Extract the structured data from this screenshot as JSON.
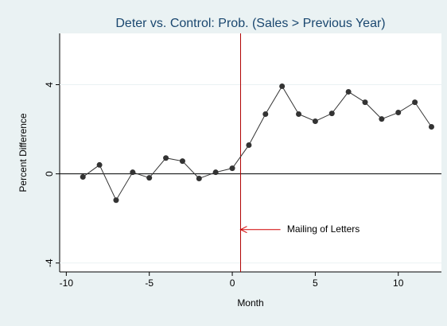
{
  "chart_data": {
    "type": "line",
    "title": "Deter vs. Control: Prob. (Sales > Previous Year)",
    "xlabel": "Month",
    "ylabel": "Percent Difference",
    "x": [
      -9,
      -8,
      -7,
      -6,
      -5,
      -4,
      -3,
      -2,
      -1,
      0,
      1,
      2,
      3,
      4,
      5,
      6,
      7,
      8,
      9,
      10,
      11,
      12
    ],
    "series": [
      {
        "color": "#333333",
        "values": [
          -0.14,
          0.4,
          -1.18,
          0.07,
          -0.18,
          0.71,
          0.57,
          -0.21,
          0.07,
          0.25,
          1.29,
          2.68,
          3.93,
          2.68,
          2.36,
          2.71,
          3.68,
          3.21,
          2.46,
          2.75,
          3.21,
          2.11
        ]
      }
    ],
    "xlim": [
      -10.4,
      12.6
    ],
    "xticks": [
      -10,
      -5,
      0,
      5,
      10
    ],
    "ylim": [
      -4.4,
      6.3
    ],
    "yticks": [
      -4,
      0,
      4
    ],
    "grid": true,
    "zero_line": true,
    "vline": {
      "x": 0.5,
      "color": "#b00000"
    },
    "annotation": {
      "text": "Mailing of Letters",
      "x": 3.3,
      "y": -2.5,
      "arrow_from": 2.9,
      "arrow_to": 0.5,
      "color": "#d00000"
    }
  }
}
